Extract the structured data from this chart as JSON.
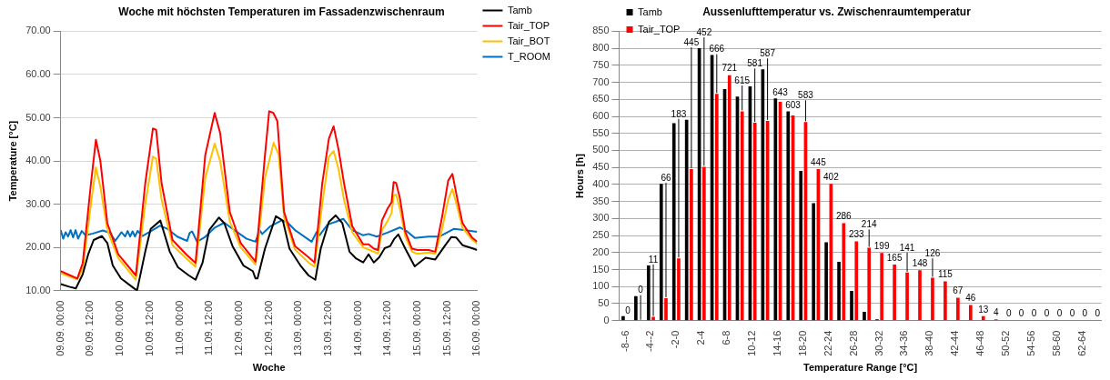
{
  "chart_data": [
    {
      "type": "line",
      "title": "Woche mit höchsten Temperaturen im Fassadenzwischenraum",
      "xlabel": "Woche",
      "ylabel": "Temperature [°C]",
      "xlim": [
        "--09-09T00:00",
        "--09-16T00:00"
      ],
      "xticks": [
        {
          "value": "--09-09T00:00",
          "label": "09.09. 00:00"
        },
        {
          "value": "--09-09T12:00",
          "label": "09.09. 12:00"
        },
        {
          "value": "--09-10T00:00",
          "label": "10.09. 00:00"
        },
        {
          "value": "--09-10T12:00",
          "label": "10.09. 12:00"
        },
        {
          "value": "--09-11T00:00",
          "label": "11.09. 00:00"
        },
        {
          "value": "--09-11T12:00",
          "label": "11.09. 12:00"
        },
        {
          "value": "--09-12T00:00",
          "label": "12.09. 00:00"
        },
        {
          "value": "--09-12T12:00",
          "label": "12.09. 12:00"
        },
        {
          "value": "--09-13T00:00",
          "label": "13.09. 00:00"
        },
        {
          "value": "--09-13T12:00",
          "label": "13.09. 12:00"
        },
        {
          "value": "--09-14T00:00",
          "label": "14.09. 00:00"
        },
        {
          "value": "--09-14T12:00",
          "label": "14.09. 12:00"
        },
        {
          "value": "--09-15T00:00",
          "label": "15.09. 00:00"
        },
        {
          "value": "--09-15T12:00",
          "label": "15.09. 12:00"
        },
        {
          "value": "--09-16T00:00",
          "label": "16.09. 00:00"
        }
      ],
      "ylim": [
        10,
        70
      ],
      "yticks": [
        {
          "value": 10,
          "label": "10.00"
        },
        {
          "value": 20,
          "label": "20.00"
        },
        {
          "value": 30,
          "label": "30.00"
        },
        {
          "value": 40,
          "label": "40.00"
        },
        {
          "value": 50,
          "label": "50.00"
        },
        {
          "value": 60,
          "label": "60.00"
        },
        {
          "value": 70,
          "label": "70.00"
        }
      ],
      "grid": "y",
      "legend": "right",
      "marker": "none",
      "line_style": "solid",
      "series": [
        {
          "name": "Tamb",
          "color": "#000000",
          "x": [
            "--09-09T00:00",
            "--09-09T03:24",
            "--09-09T06:06",
            "--09-09T08:54",
            "--09-09T11:06",
            "--09-09T13:18",
            "--09-09T16:36",
            "--09-09T18:48",
            "--09-09T21:00",
            "--09-10T00:18",
            "--09-10T04:42",
            "--09-10T06:48",
            "--09-10T10:06",
            "--09-10T12:18",
            "--09-10T16:12",
            "--09-10T20:00",
            "--09-10T23:18",
            "--09-11T03:42",
            "--09-11T06:24",
            "--09-11T09:12",
            "--09-11T11:54",
            "--09-11T15:48",
            "--09-11T18:00",
            "--09-11T21:18",
            "--09-12T01:42",
            "--09-12T05:30",
            "--09-12T06:36",
            "--09-12T07:24",
            "--09-12T10:24",
            "--09-12T14:48",
            "--09-12T17:36",
            "--09-12T20:18",
            "--09-13T00:42",
            "--09-13T04:00",
            "--09-13T06:42",
            "--09-13T08:54",
            "--09-13T12:12",
            "--09-13T14:54",
            "--09-13T17:36",
            "--09-13T20:30",
            "--09-13T23:12",
            "--09-14T02:00",
            "--09-14T04:12",
            "--09-14T06:18",
            "--09-14T08:30",
            "--09-14T10:42",
            "--09-14T12:54",
            "--09-14T14:36",
            "--09-14T16:12",
            "--09-14T19:00",
            "--09-14T22:48",
            "--09-15T03:12",
            "--09-15T07:06",
            "--09-15T10:54",
            "--09-15T13:36",
            "--09-15T15:30",
            "--09-15T18:06",
            "--09-15T21:54",
            "--09-16T00:00"
          ],
          "values": [
            11.5,
            10.9,
            10.5,
            13.8,
            18.4,
            21.7,
            22.6,
            21,
            15.8,
            12.8,
            10.9,
            10,
            19,
            24.3,
            26.2,
            19,
            15.4,
            13.5,
            12.5,
            16.4,
            24,
            26.9,
            25.6,
            20.3,
            15.8,
            14.5,
            12.8,
            12.8,
            19.7,
            27.2,
            26.2,
            19.7,
            15.8,
            13.5,
            12.5,
            19.7,
            25.9,
            27.4,
            25.6,
            19,
            17.4,
            16.5,
            18.4,
            16.5,
            17.7,
            19.8,
            20.3,
            22,
            23,
            19.7,
            15.6,
            17.6,
            17.2,
            20.3,
            22.4,
            22.3,
            20.5,
            19.8,
            19.4
          ]
        },
        {
          "name": "Tair_TOP",
          "color": "#ff0000",
          "x": [
            "--09-09T00:00",
            "--09-09T06:42",
            "--09-09T08:54",
            "--09-09T12:12",
            "--09-09T14:12",
            "--09-09T16:00",
            "--09-09T18:48",
            "--09-09T23:12",
            "--09-10T06:18",
            "--09-10T10:06",
            "--09-10T13:12",
            "--09-10T14:30",
            "--09-10T16:42",
            "--09-10T21:06",
            "--09-11T02:36",
            "--09-11T06:24",
            "--09-11T10:18",
            "--09-11T14:06",
            "--09-11T16:18",
            "--09-11T20:12",
            "--09-12T00:36",
            "--09-12T06:36",
            "--09-12T10:24",
            "--09-12T12:06",
            "--09-12T13:48",
            "--09-12T15:24",
            "--09-12T18:06",
            "--09-12T22:30",
            "--09-13T04:00",
            "--09-13T06:24",
            "--09-13T09:30",
            "--09-13T12:12",
            "--09-13T14:06",
            "--09-13T16:06",
            "--09-13T18:18",
            "--09-13T21:36",
            "--09-14T02:00",
            "--09-14T04:12",
            "--09-14T06:18",
            "--09-14T08:00",
            "--09-14T09:36",
            "--09-14T11:48",
            "--09-14T13:30",
            "--09-14T14:18",
            "--09-14T15:18",
            "--09-14T16:48",
            "--09-14T19:00",
            "--09-14T21:42",
            "--09-14T23:54",
            "--09-15T04:24",
            "--09-15T07:06",
            "--09-15T09:48",
            "--09-15T12:18",
            "--09-15T14:00",
            "--09-15T15:54",
            "--09-15T18:06",
            "--09-15T21:54",
            "--09-16T00:00"
          ],
          "values": [
            14.5,
            12.8,
            16.4,
            34.8,
            44.9,
            40,
            25.6,
            18.4,
            13.5,
            34.8,
            47.5,
            47.2,
            34.8,
            21.7,
            18.4,
            16.4,
            41.3,
            51.1,
            46.5,
            28.2,
            21,
            16.7,
            41.3,
            51.5,
            51.1,
            49.2,
            28.2,
            20.3,
            17.7,
            16.5,
            34.8,
            45.2,
            48,
            42.6,
            34.8,
            24.9,
            20.7,
            20.7,
            19.7,
            19.4,
            26.2,
            28.9,
            30.5,
            35.1,
            34.9,
            31.5,
            23.6,
            19.7,
            19.4,
            19.4,
            19,
            26.9,
            35.4,
            37,
            31.5,
            25.6,
            22.3,
            21.3
          ]
        },
        {
          "name": "Tair_BOT",
          "color": "#ffc000",
          "x": [
            "--09-09T00:00",
            "--09-09T06:42",
            "--09-09T08:54",
            "--09-09T12:12",
            "--09-09T14:12",
            "--09-09T16:00",
            "--09-09T18:48",
            "--09-09T23:12",
            "--09-10T06:18",
            "--09-10T10:06",
            "--09-10T13:12",
            "--09-10T14:30",
            "--09-10T16:42",
            "--09-10T21:06",
            "--09-11T02:36",
            "--09-11T06:24",
            "--09-11T10:18",
            "--09-11T14:06",
            "--09-11T16:18",
            "--09-11T20:12",
            "--09-12T00:36",
            "--09-12T06:36",
            "--09-12T10:24",
            "--09-12T13:54",
            "--09-12T15:54",
            "--09-12T18:06",
            "--09-12T22:30",
            "--09-13T04:00",
            "--09-13T06:24",
            "--09-13T09:30",
            "--09-13T12:12",
            "--09-13T14:06",
            "--09-13T16:06",
            "--09-13T18:18",
            "--09-13T21:36",
            "--09-14T02:00",
            "--09-14T04:12",
            "--09-14T06:18",
            "--09-14T08:00",
            "--09-14T09:36",
            "--09-14T11:48",
            "--09-14T13:30",
            "--09-14T14:18",
            "--09-14T15:18",
            "--09-14T16:48",
            "--09-14T19:00",
            "--09-14T21:42",
            "--09-14T23:54",
            "--09-15T04:24",
            "--09-15T07:06",
            "--09-15T09:48",
            "--09-15T12:18",
            "--09-15T14:00",
            "--09-15T15:54",
            "--09-15T18:06",
            "--09-15T21:54",
            "--09-16T00:00"
          ],
          "values": [
            14,
            12.6,
            15,
            30,
            38.5,
            34,
            24,
            17.5,
            12.5,
            30,
            41,
            40.5,
            31,
            20.5,
            17.5,
            15.5,
            36,
            44,
            40,
            26,
            20,
            16,
            36,
            44.2,
            41.5,
            27,
            19.5,
            16.5,
            15.5,
            30,
            41,
            42.3,
            38,
            31,
            23.5,
            20,
            19.5,
            19,
            18.5,
            24,
            26,
            28,
            32,
            32.2,
            29,
            22.5,
            19,
            18.5,
            18.8,
            18.5,
            24,
            31,
            33.5,
            29.5,
            24.5,
            21.8,
            20.8
          ]
        },
        {
          "name": "T_ROOM",
          "color": "#0070c0",
          "x": [
            "--09-09T00:00",
            "--09-09T01:00",
            "--09-09T02:00",
            "--09-09T03:00",
            "--09-09T04:00",
            "--09-09T05:00",
            "--09-09T06:00",
            "--09-09T07:00",
            "--09-09T08:30",
            "--09-09T10:00",
            "--09-09T13:00",
            "--09-09T17:00",
            "--09-09T20:00",
            "--09-09T22:00",
            "--09-10T00:30",
            "--09-10T02:00",
            "--09-10T03:00",
            "--09-10T04:00",
            "--09-10T05:00",
            "--09-10T06:00",
            "--09-10T07:00",
            "--09-10T09:00",
            "--09-10T12:00",
            "--09-10T16:00",
            "--09-10T19:00",
            "--09-10T23:00",
            "--09-11T03:00",
            "--09-11T04:00",
            "--09-11T05:00",
            "--09-11T07:00",
            "--09-11T10:00",
            "--09-11T14:00",
            "--09-11T18:00",
            "--09-11T22:00",
            "--09-12T03:00",
            "--09-12T06:36",
            "--09-12T08:12",
            "--09-12T09:18",
            "--09-12T12:36",
            "--09-12T17:00",
            "--09-12T19:12",
            "--09-12T22:30",
            "--09-13T05:12",
            "--09-13T07:18",
            "--09-13T08:24",
            "--09-13T11:42",
            "--09-13T14:54",
            "--09-13T18:00",
            "--09-13T21:36",
            "--09-14T02:00",
            "--09-14T04:12",
            "--09-14T07:30",
            "--09-14T11:48",
            "--09-14T16:48",
            "--09-14T19:30",
            "--09-14T22:48",
            "--09-15T04:24",
            "--09-15T08:48",
            "--09-15T14:42",
            "--09-15T18:36",
            "--09-16T00:00"
          ],
          "values": [
            24,
            22,
            23.5,
            22.5,
            24,
            22.3,
            24,
            22,
            23.8,
            22.8,
            23.2,
            23.9,
            23.3,
            21.5,
            23.5,
            22.5,
            23.8,
            22.5,
            23.7,
            22.5,
            23.8,
            22.6,
            23.6,
            25,
            24.3,
            22.5,
            21.5,
            23.3,
            23.7,
            21.3,
            22.3,
            24.5,
            25.7,
            24,
            22,
            21.3,
            24,
            23.1,
            24.9,
            26.2,
            25.9,
            24,
            21.3,
            23.6,
            22.8,
            25.3,
            25.9,
            26.6,
            24,
            22.8,
            23.1,
            22.5,
            23.4,
            24.6,
            23.8,
            22.2,
            22.5,
            22.5,
            24.3,
            24,
            23.6
          ]
        }
      ]
    },
    {
      "type": "bar",
      "title": "Aussenlufttemperatur vs. Zwischenraumtemperatur",
      "xlabel": "Temperature Range [°C]",
      "ylabel": "Hours [h]",
      "categories": [
        "-8--6",
        null,
        "-4--2",
        null,
        "-2-0",
        null,
        "2-4",
        null,
        "6-8",
        null,
        "10-12",
        null,
        "14-16",
        null,
        "18-20",
        null,
        "22-24",
        null,
        "26-28",
        null,
        "30-32",
        null,
        "34-36",
        null,
        "38-40",
        null,
        "42-44",
        null,
        "46-48",
        null,
        "50-52",
        null,
        "54-56",
        null,
        "58-60",
        null,
        "62-64",
        null
      ],
      "ylim": [
        0,
        850
      ],
      "yticks": [
        0,
        50,
        100,
        150,
        200,
        250,
        300,
        350,
        400,
        450,
        500,
        550,
        600,
        650,
        700,
        750,
        800,
        850
      ],
      "grid": "y",
      "legend": "top left",
      "series": [
        {
          "name": "Tamb",
          "color": "#000000",
          "values": [
            13,
            72,
            162,
            402,
            580,
            590,
            800,
            780,
            680,
            658,
            688,
            738,
            653,
            615,
            440,
            345,
            230,
            173,
            87,
            26,
            4,
            0,
            0,
            0,
            0,
            0,
            0,
            0,
            0,
            0,
            0,
            0,
            0,
            0,
            0,
            0,
            0,
            0
          ]
        },
        {
          "name": "Tair_TOP",
          "color": "#ff0000",
          "values": [
            0,
            0,
            11,
            66,
            183,
            445,
            452,
            666,
            721,
            615,
            581,
            587,
            643,
            603,
            583,
            445,
            402,
            286,
            233,
            214,
            199,
            165,
            141,
            148,
            126,
            115,
            67,
            46,
            13,
            4,
            0,
            0,
            0,
            0,
            0,
            0,
            0,
            0
          ],
          "value_labels": [
            "0",
            "0",
            "11",
            "66",
            "183",
            "445",
            "452",
            "666",
            "721",
            "615",
            "581",
            "587",
            "643",
            "603",
            "583",
            "445",
            "402",
            "286",
            "233",
            "214",
            "199",
            "165",
            "141",
            "148",
            "126",
            "115",
            "67",
            "46",
            "13",
            "4",
            "0",
            "0",
            "0",
            "0",
            "0",
            "0",
            "0",
            "0"
          ]
        }
      ]
    }
  ]
}
